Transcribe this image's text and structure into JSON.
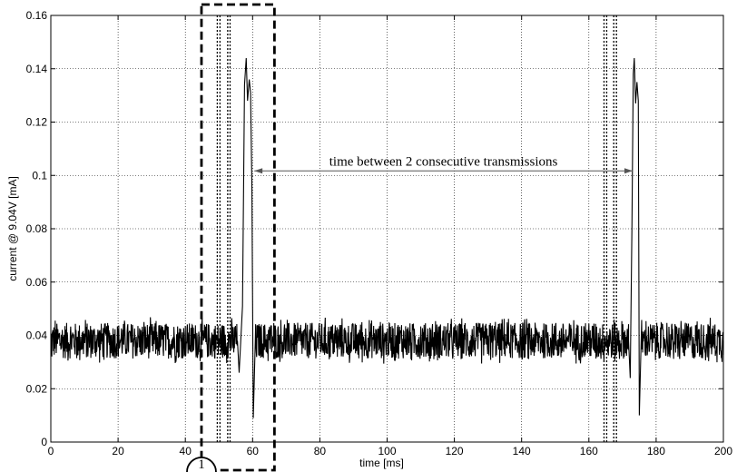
{
  "chart_data": {
    "type": "line",
    "title": "",
    "xlabel": "time [ms]",
    "ylabel": "current @ 9.04V [mA]",
    "xlim": [
      0,
      200
    ],
    "ylim": [
      0,
      0.16
    ],
    "grid": true,
    "x_ticks": [
      0,
      20,
      40,
      60,
      80,
      100,
      120,
      140,
      160,
      180,
      200
    ],
    "x_tick_labels": [
      "0",
      "20",
      "40",
      "60",
      "80",
      "100",
      "120",
      "140",
      "160",
      "180",
      "200"
    ],
    "y_ticks": [
      0,
      0.02,
      0.04,
      0.06,
      0.08,
      0.1,
      0.12,
      0.14,
      0.16
    ],
    "y_tick_labels": [
      "0",
      "0.02",
      "0.04",
      "0.06",
      "0.08",
      "0.1",
      "0.12",
      "0.14",
      "0.16"
    ],
    "baseline_current": 0.038,
    "noise_band": [
      0.029,
      0.047
    ],
    "series": [
      {
        "points": [
          [
            0,
            0.038
          ],
          [
            55.5,
            0.038
          ],
          [
            56,
            0.026
          ],
          [
            57,
            0.051
          ],
          [
            57.6,
            0.134
          ],
          [
            58.1,
            0.144
          ],
          [
            58.5,
            0.128
          ],
          [
            59,
            0.136
          ],
          [
            59.4,
            0.131
          ],
          [
            59.8,
            0.095
          ],
          [
            60.2,
            0.009
          ],
          [
            60.8,
            0.038
          ],
          [
            171.8,
            0.038
          ],
          [
            172.3,
            0.024
          ],
          [
            172.8,
            0.08
          ],
          [
            173.2,
            0.138
          ],
          [
            173.5,
            0.144
          ],
          [
            173.9,
            0.127
          ],
          [
            174.3,
            0.135
          ],
          [
            174.7,
            0.128
          ],
          [
            175,
            0.01
          ],
          [
            175.7,
            0.038
          ],
          [
            200,
            0.038
          ]
        ]
      }
    ],
    "vertical_markers_ms": [
      49.5,
      50.3,
      52.6,
      53.3,
      164.5,
      165.3,
      167.4,
      168.2
    ],
    "annotation": {
      "text": "time between 2 consecutive transmissions",
      "arrow_from_ms": 60.5,
      "arrow_to_ms": 173,
      "at_y": 0.1017
    },
    "highlight_box": {
      "x_range": [
        44.8,
        66.5
      ],
      "circled_label": "1"
    }
  }
}
